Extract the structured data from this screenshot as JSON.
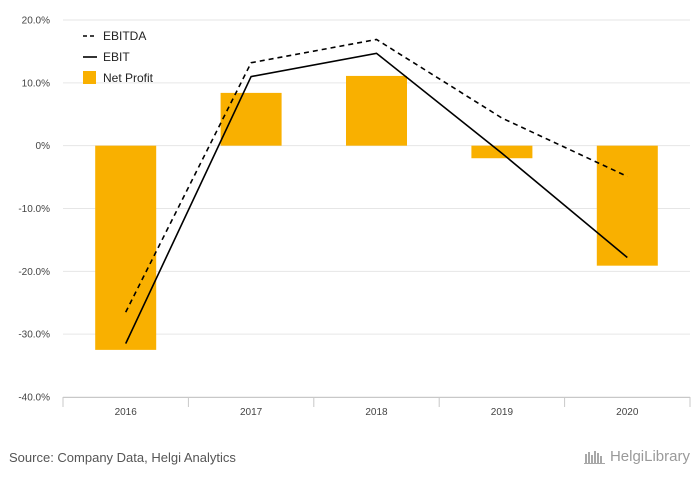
{
  "chart_data": {
    "type": "bar",
    "categories": [
      "2016",
      "2017",
      "2018",
      "2019",
      "2020"
    ],
    "series": [
      {
        "name": "Net Profit",
        "type": "bar",
        "color": "#F9B000",
        "values": [
          -32.5,
          8.4,
          11.1,
          -2.0,
          -19.1
        ]
      },
      {
        "name": "EBITDA",
        "type": "line",
        "style": "dashed",
        "color": "#000000",
        "values": [
          -26.5,
          13.2,
          16.9,
          4.4,
          -4.9
        ]
      },
      {
        "name": "EBIT",
        "type": "line",
        "style": "solid",
        "color": "#000000",
        "values": [
          -31.5,
          11.0,
          14.7,
          -1.2,
          -17.8
        ]
      }
    ],
    "ylim": [
      -40,
      20
    ],
    "yticks": [
      "20.0%",
      "10.0%",
      "0%",
      "-10.0%",
      "-20.0%",
      "-30.0%",
      "-40.0%"
    ],
    "grid": true,
    "legend_position": "top-left",
    "title": "",
    "xlabel": "",
    "ylabel": ""
  },
  "footer": {
    "source": "Source: Company Data, Helgi Analytics",
    "brand": "HelgiLibrary"
  }
}
